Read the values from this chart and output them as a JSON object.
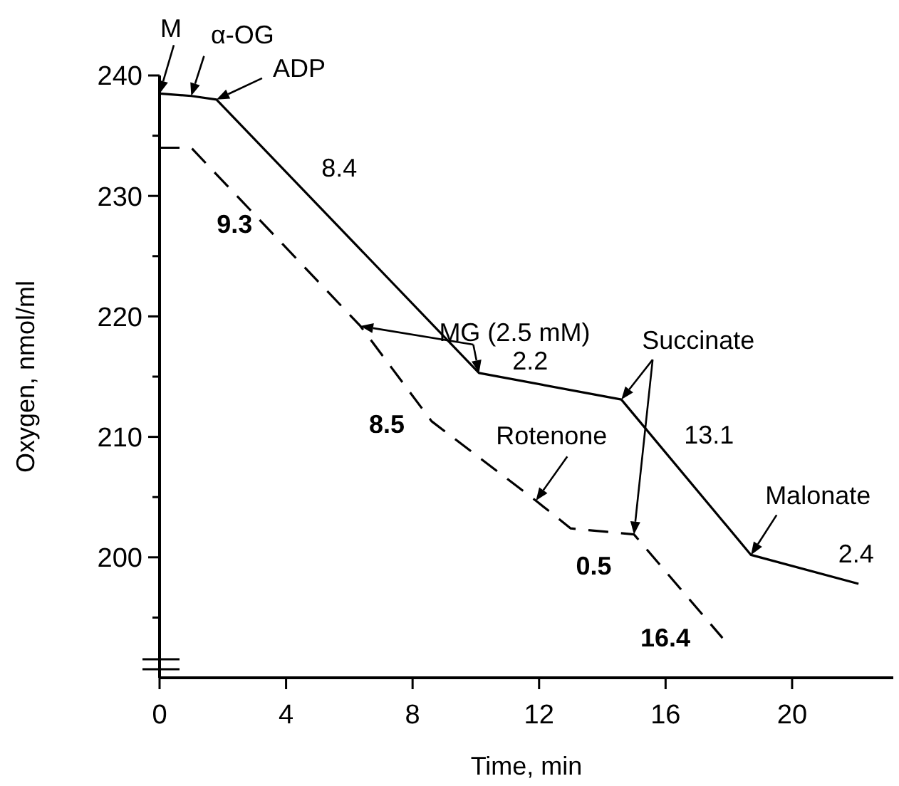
{
  "chart_data": {
    "type": "line",
    "xlabel": "Time, min",
    "ylabel": "Oxygen, nmol/ml",
    "xlim": [
      0,
      23.2
    ],
    "ylim": [
      190,
      240
    ],
    "xticks": [
      0,
      4,
      8,
      12,
      16,
      20
    ],
    "yticks": [
      {
        "value": 195,
        "label": null
      },
      200,
      {
        "value": 205,
        "label": null
      },
      210,
      {
        "value": 215,
        "label": null
      },
      220,
      {
        "value": 225,
        "label": null
      },
      230,
      {
        "value": 235,
        "label": null
      },
      240
    ],
    "series": [
      {
        "color": "#000000",
        "line_style": "solid",
        "x": [
          0,
          1,
          1.8,
          10.1,
          14.6,
          18.7,
          22.1
        ],
        "values": [
          238.5,
          238.3,
          238,
          215.3,
          213.1,
          200.2,
          197.8
        ]
      },
      {
        "color": "#000000",
        "line_style": "dashed",
        "x": [
          0,
          1,
          6.35,
          8.6,
          11.9,
          13,
          15,
          17.8
        ],
        "values": [
          234,
          234,
          219.2,
          211.3,
          204.7,
          202.4,
          201.9,
          193.3
        ]
      }
    ],
    "annotations": [
      "8.4",
      "9.3",
      "2.2",
      "8.5",
      "13.1",
      "0.5",
      "2.4",
      "16.4",
      {
        "text": "M",
        "x": 0,
        "y": 238.5
      },
      {
        "text": "α-OG",
        "x": 1,
        "y": 238.3
      },
      {
        "text": "ADP",
        "x": 1.8,
        "y": 238
      },
      {
        "text": "MG (2.5 mM)",
        "x": 10.1,
        "y": 215.3
      },
      {
        "text": "Rotenone",
        "x": 11.9,
        "y": 204.7
      },
      {
        "text": "Succinate",
        "x": 14.6,
        "y": 213.1
      },
      {
        "text": "Malonate",
        "x": 18.7,
        "y": 200.2
      }
    ]
  }
}
